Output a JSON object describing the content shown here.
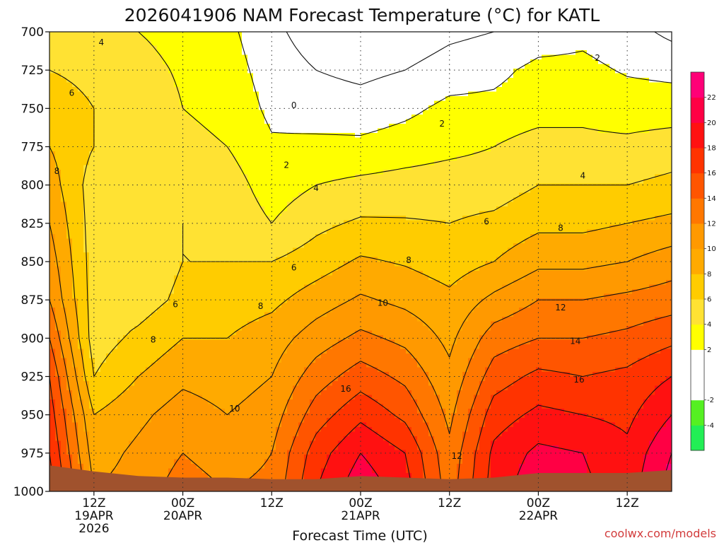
{
  "chart_data": {
    "type": "heatmap",
    "title": "2026041906 NAM Forecast Temperature (°C) for KATL",
    "xlabel": "Forecast Time (UTC)",
    "ylabel": "",
    "credit": "coolwx.com/models",
    "x_range_hours": [
      0,
      84
    ],
    "y_range_hpa": [
      700,
      1000
    ],
    "y_ticks": [
      700,
      725,
      750,
      775,
      800,
      825,
      850,
      875,
      900,
      925,
      950,
      975,
      1000
    ],
    "x_ticks": [
      {
        "hour": 6,
        "labels": [
          "12Z",
          "19APR",
          "2026"
        ]
      },
      {
        "hour": 18,
        "labels": [
          "00Z",
          "20APR"
        ]
      },
      {
        "hour": 30,
        "labels": [
          "12Z"
        ]
      },
      {
        "hour": 42,
        "labels": [
          "00Z",
          "21APR"
        ]
      },
      {
        "hour": 54,
        "labels": [
          "12Z"
        ]
      },
      {
        "hour": 66,
        "labels": [
          "00Z",
          "22APR"
        ]
      },
      {
        "hour": 78,
        "labels": [
          "12Z"
        ]
      }
    ],
    "colorbar": {
      "levels": [
        -6,
        -4,
        -2,
        0,
        2,
        4,
        6,
        8,
        10,
        12,
        14,
        16,
        18,
        20,
        22,
        24
      ],
      "labels": [
        "-4",
        "-2",
        "2",
        "4",
        "6",
        "8",
        "10",
        "12",
        "14",
        "16",
        "18",
        "20",
        "22"
      ],
      "colors": [
        "#22ee55",
        "#55f022",
        "#ffffff",
        "#ffffff",
        "#ffff00",
        "#ffe233",
        "#ffcc00",
        "#ffaa00",
        "#ff9900",
        "#ff7700",
        "#ff5500",
        "#ff3300",
        "#ff1111",
        "#ff0044",
        "#ff0077"
      ]
    },
    "profiles": [
      {
        "hour": 0,
        "levels": [
          [
            700,
            5
          ],
          [
            725,
            6
          ],
          [
            750,
            7
          ],
          [
            775,
            8
          ],
          [
            800,
            9
          ],
          [
            825,
            10
          ],
          [
            850,
            11
          ],
          [
            875,
            12
          ],
          [
            900,
            14
          ],
          [
            925,
            16
          ],
          [
            950,
            17
          ],
          [
            975,
            18
          ],
          [
            1000,
            19
          ]
        ]
      },
      {
        "hour": 6,
        "levels": [
          [
            700,
            4.5
          ],
          [
            725,
            5.5
          ],
          [
            750,
            6
          ],
          [
            775,
            6
          ],
          [
            800,
            5
          ],
          [
            825,
            5
          ],
          [
            850,
            5
          ],
          [
            875,
            5
          ],
          [
            900,
            5
          ],
          [
            925,
            6
          ],
          [
            950,
            8
          ],
          [
            975,
            9
          ],
          [
            1000,
            10
          ]
        ]
      },
      {
        "hour": 12,
        "levels": [
          [
            700,
            4
          ],
          [
            725,
            4.5
          ],
          [
            750,
            5
          ],
          [
            775,
            5
          ],
          [
            800,
            5
          ],
          [
            825,
            4.5
          ],
          [
            850,
            4.5
          ],
          [
            875,
            5
          ],
          [
            900,
            6.5
          ],
          [
            925,
            8
          ],
          [
            950,
            9.5
          ],
          [
            975,
            10.5
          ],
          [
            1000,
            11
          ]
        ]
      },
      {
        "hour": 18,
        "levels": [
          [
            700,
            3.5
          ],
          [
            725,
            3.8
          ],
          [
            750,
            4
          ],
          [
            775,
            4.5
          ],
          [
            800,
            5.5
          ],
          [
            825,
            6
          ],
          [
            850,
            6
          ],
          [
            875,
            6.5
          ],
          [
            900,
            8
          ],
          [
            925,
            9.5
          ],
          [
            950,
            11
          ],
          [
            975,
            12
          ],
          [
            1000,
            13
          ]
        ]
      },
      {
        "hour": 24,
        "levels": [
          [
            700,
            2.5
          ],
          [
            725,
            3
          ],
          [
            750,
            3.5
          ],
          [
            775,
            4
          ],
          [
            800,
            5
          ],
          [
            825,
            5.5
          ],
          [
            850,
            6
          ],
          [
            875,
            7
          ],
          [
            900,
            8
          ],
          [
            925,
            9
          ],
          [
            950,
            10
          ],
          [
            975,
            11
          ],
          [
            1000,
            12
          ]
        ]
      },
      {
        "hour": 30,
        "levels": [
          [
            700,
            0.5
          ],
          [
            725,
            1
          ],
          [
            750,
            1.5
          ],
          [
            775,
            2.3
          ],
          [
            800,
            3
          ],
          [
            825,
            4
          ],
          [
            850,
            6
          ],
          [
            875,
            7.5
          ],
          [
            900,
            9
          ],
          [
            925,
            10
          ],
          [
            950,
            11
          ],
          [
            975,
            12
          ],
          [
            1000,
            12.5
          ]
        ]
      },
      {
        "hour": 36,
        "levels": [
          [
            700,
            -1
          ],
          [
            725,
            0
          ],
          [
            750,
            1
          ],
          [
            775,
            2.5
          ],
          [
            800,
            4
          ],
          [
            825,
            5.5
          ],
          [
            850,
            7
          ],
          [
            875,
            9
          ],
          [
            900,
            11
          ],
          [
            925,
            13
          ],
          [
            950,
            15
          ],
          [
            975,
            17
          ],
          [
            1000,
            18
          ]
        ]
      },
      {
        "hour": 42,
        "levels": [
          [
            700,
            -2
          ],
          [
            725,
            -0.5
          ],
          [
            750,
            0.8
          ],
          [
            775,
            2.5
          ],
          [
            800,
            4.5
          ],
          [
            825,
            6.3
          ],
          [
            850,
            8.3
          ],
          [
            875,
            10.3
          ],
          [
            900,
            12.5
          ],
          [
            925,
            15
          ],
          [
            950,
            17.5
          ],
          [
            975,
            20
          ],
          [
            1000,
            21.5
          ]
        ]
      },
      {
        "hour": 48,
        "levels": [
          [
            700,
            -1.5
          ],
          [
            725,
            0
          ],
          [
            750,
            1.5
          ],
          [
            775,
            3
          ],
          [
            800,
            4.8
          ],
          [
            825,
            6.2
          ],
          [
            850,
            7.8
          ],
          [
            875,
            9.5
          ],
          [
            900,
            11.5
          ],
          [
            925,
            13.5
          ],
          [
            950,
            15.5
          ],
          [
            975,
            18
          ],
          [
            1000,
            19
          ]
        ]
      },
      {
        "hour": 54,
        "levels": [
          [
            700,
            -0.5
          ],
          [
            725,
            1
          ],
          [
            750,
            2.5
          ],
          [
            775,
            3.5
          ],
          [
            800,
            5
          ],
          [
            825,
            6
          ],
          [
            850,
            7
          ],
          [
            875,
            8.5
          ],
          [
            900,
            9.5
          ],
          [
            925,
            10.5
          ],
          [
            950,
            11.5
          ],
          [
            975,
            12.5
          ],
          [
            1000,
            13
          ]
        ]
      },
      {
        "hour": 60,
        "levels": [
          [
            700,
            0
          ],
          [
            725,
            1.5
          ],
          [
            750,
            2.5
          ],
          [
            775,
            4
          ],
          [
            800,
            5
          ],
          [
            825,
            6.5
          ],
          [
            850,
            8
          ],
          [
            875,
            10.5
          ],
          [
            900,
            13
          ],
          [
            925,
            15
          ],
          [
            950,
            17
          ],
          [
            975,
            18.5
          ],
          [
            1000,
            19
          ]
        ]
      },
      {
        "hour": 66,
        "levels": [
          [
            700,
            1
          ],
          [
            725,
            2.5
          ],
          [
            750,
            3
          ],
          [
            775,
            5
          ],
          [
            800,
            6
          ],
          [
            825,
            7.5
          ],
          [
            850,
            9.5
          ],
          [
            875,
            12
          ],
          [
            900,
            14
          ],
          [
            925,
            16.5
          ],
          [
            950,
            18.5
          ],
          [
            975,
            20.5
          ],
          [
            1000,
            21.5
          ]
        ]
      },
      {
        "hour": 72,
        "levels": [
          [
            700,
            1.5
          ],
          [
            725,
            2.5
          ],
          [
            750,
            3.5
          ],
          [
            775,
            4.5
          ],
          [
            800,
            6
          ],
          [
            825,
            7.5
          ],
          [
            850,
            9.5
          ],
          [
            875,
            12
          ],
          [
            900,
            14
          ],
          [
            925,
            16
          ],
          [
            950,
            18
          ],
          [
            975,
            20
          ],
          [
            1000,
            20.5
          ]
        ]
      },
      {
        "hour": 78,
        "levels": [
          [
            700,
            0.8
          ],
          [
            725,
            1.8
          ],
          [
            750,
            3
          ],
          [
            775,
            4.5
          ],
          [
            800,
            6
          ],
          [
            825,
            8
          ],
          [
            850,
            10
          ],
          [
            875,
            12.5
          ],
          [
            900,
            14.5
          ],
          [
            925,
            16.5
          ],
          [
            950,
            17.5
          ],
          [
            975,
            18.5
          ],
          [
            1000,
            19
          ]
        ]
      },
      {
        "hour": 84,
        "levels": [
          [
            700,
            -0.5
          ],
          [
            725,
            1.5
          ],
          [
            750,
            3
          ],
          [
            775,
            5
          ],
          [
            800,
            6.5
          ],
          [
            825,
            8.5
          ],
          [
            850,
            11
          ],
          [
            875,
            13
          ],
          [
            900,
            15.5
          ],
          [
            925,
            18
          ],
          [
            950,
            20
          ],
          [
            975,
            22
          ],
          [
            1000,
            23
          ]
        ]
      }
    ],
    "terrain": [
      [
        0,
        983
      ],
      [
        6,
        987
      ],
      [
        12,
        990
      ],
      [
        18,
        991
      ],
      [
        24,
        991
      ],
      [
        30,
        992
      ],
      [
        36,
        992
      ],
      [
        42,
        990
      ],
      [
        48,
        991
      ],
      [
        54,
        992
      ],
      [
        60,
        991
      ],
      [
        66,
        988
      ],
      [
        72,
        988
      ],
      [
        78,
        988
      ],
      [
        84,
        986
      ]
    ],
    "contour_labels": [
      {
        "text": "4",
        "hour": 7,
        "p": 707
      },
      {
        "text": "6",
        "hour": 3,
        "p": 740
      },
      {
        "text": "8",
        "hour": 1,
        "p": 791
      },
      {
        "text": "6",
        "hour": 17,
        "p": 878
      },
      {
        "text": "8",
        "hour": 14,
        "p": 901
      },
      {
        "text": "10",
        "hour": 25,
        "p": 946
      },
      {
        "text": "8",
        "hour": 28.5,
        "p": 879
      },
      {
        "text": "6",
        "hour": 33,
        "p": 854
      },
      {
        "text": "0",
        "hour": 33,
        "p": 748
      },
      {
        "text": "2",
        "hour": 32,
        "p": 787
      },
      {
        "text": "4",
        "hour": 36,
        "p": 802
      },
      {
        "text": "2",
        "hour": 53,
        "p": 760
      },
      {
        "text": "8",
        "hour": 48.5,
        "p": 849
      },
      {
        "text": "6",
        "hour": 59,
        "p": 824
      },
      {
        "text": "10",
        "hour": 45,
        "p": 877
      },
      {
        "text": "16",
        "hour": 40,
        "p": 933
      },
      {
        "text": "12",
        "hour": 55,
        "p": 977
      },
      {
        "text": "12",
        "hour": 69,
        "p": 880
      },
      {
        "text": "14",
        "hour": 71,
        "p": 902
      },
      {
        "text": "16",
        "hour": 71.5,
        "p": 927
      },
      {
        "text": "8",
        "hour": 69,
        "p": 828
      },
      {
        "text": "2",
        "hour": 74,
        "p": 717
      },
      {
        "text": "4",
        "hour": 72,
        "p": 794
      }
    ]
  }
}
